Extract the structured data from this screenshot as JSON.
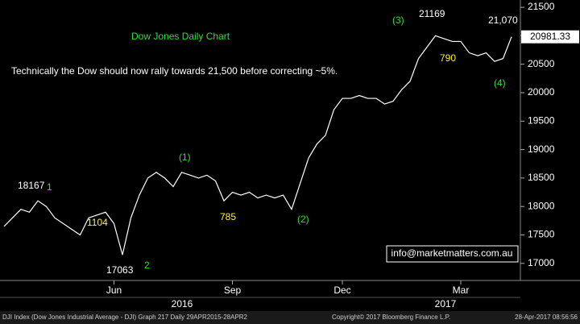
{
  "chart_data": {
    "type": "line",
    "title": "Dow Jones Daily Chart",
    "subtitle": "Technically the Dow should now rally towards 21,500 before correcting ~5%.",
    "categories": [
      null,
      null,
      null,
      null,
      null,
      null,
      null,
      null,
      null,
      null,
      null,
      null,
      null,
      "Jun",
      null,
      null,
      null,
      null,
      null,
      null,
      null,
      null,
      null,
      null,
      null,
      null,
      null,
      "Sep",
      null,
      null,
      null,
      null,
      null,
      null,
      null,
      null,
      null,
      null,
      null,
      null,
      "Dec",
      null,
      null,
      null,
      null,
      null,
      null,
      null,
      null,
      null,
      null,
      null,
      null,
      null,
      "Mar",
      null,
      null,
      null,
      null,
      null,
      null
    ],
    "values": [
      17650,
      17800,
      17950,
      17900,
      18100,
      18000,
      17800,
      17700,
      17600,
      17500,
      17800,
      17850,
      17900,
      17700,
      17150,
      17800,
      18200,
      18500,
      18600,
      18500,
      18350,
      18600,
      18550,
      18500,
      18550,
      18450,
      18100,
      18250,
      18200,
      18250,
      18150,
      18200,
      18150,
      18200,
      17950,
      18400,
      18850,
      19100,
      19250,
      19700,
      19900,
      19900,
      19950,
      19900,
      19900,
      19800,
      19850,
      20050,
      20200,
      20600,
      20800,
      21000,
      20950,
      20900,
      20900,
      20700,
      20650,
      20700,
      20550,
      20600,
      20981.33
    ],
    "color": "#ffffff",
    "ylim": [
      16700,
      21600
    ],
    "yticks": [
      17000,
      17500,
      18000,
      18500,
      19000,
      19500,
      20000,
      20500,
      21000,
      21500
    ],
    "years": [
      "2016",
      "2017"
    ],
    "annotations": [
      "18167",
      "1",
      "1104",
      "17063",
      "2",
      "(1)",
      "785",
      "(2)",
      "(3)",
      "21169",
      "21,070",
      "790",
      "(4)"
    ],
    "contact": "info@marketmatters.com.au",
    "footer": [
      "DJI Index (Dow Jones Industrial Average - DJI) Graph 217  Daily 29APR2015-28APR2",
      "Copyright© 2017 Bloomberg Finance L.P.",
      "28-Apr-2017 08:56:56"
    ]
  }
}
